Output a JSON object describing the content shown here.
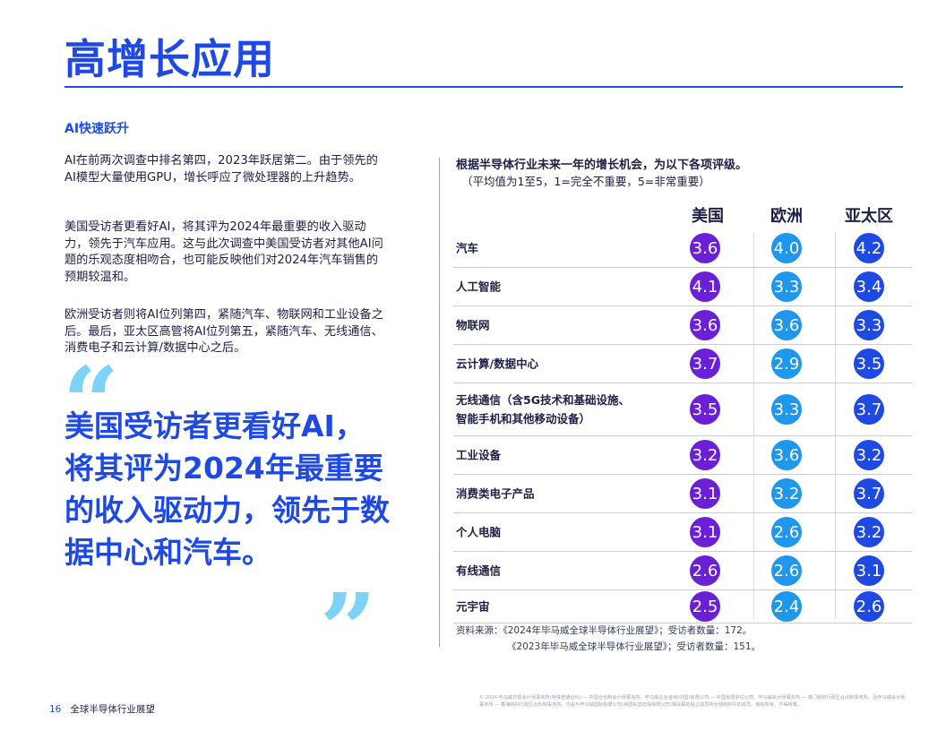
{
  "page": {
    "title": "高增长应用",
    "section_heading": "AI快速跃升",
    "paragraphs": [
      "AI在前两次调查中排名第四，2023年跃居第二。由于领先的AI模型大量使用GPU，增长呼应了微处理器的上升趋势。",
      "美国受访者更看好AI，将其评为2024年最重要的收入驱动力，领先于汽车应用。这与此次调查中美国受访者对其他AI问题的乐观态度相吻合，也可能反映他们对2024年汽车销售的预期较温和。",
      "欧洲受访者则将AI位列第四，紧随汽车、物联网和工业设备之后。最后，亚太区高管将AI位列第五，紧随汽车、无线通信、消费电子和云计算/数据中心之后。"
    ],
    "quote": {
      "open_mark": "“",
      "text": "美国受访者更看好AI，将其评为2024年最重要的收入驱动力，领先于数据中心和汽车。",
      "close_mark": "”"
    }
  },
  "chart_data": {
    "type": "table",
    "title": "根据半导体行业未来一年的增长机会，为以下各项评级。",
    "subtitle": "（平均值为1至5，1=完全不重要，5=非常重要）",
    "columns": [
      "美国",
      "欧洲",
      "亚太区"
    ],
    "column_colors": [
      "#6b1fd6",
      "#1e97ec",
      "#1e49e2"
    ],
    "rows": [
      {
        "label": "汽车",
        "values": [
          "3.6",
          "4.0",
          "4.2"
        ]
      },
      {
        "label": "人工智能",
        "values": [
          "4.1",
          "3.3",
          "3.4"
        ]
      },
      {
        "label": "物联网",
        "values": [
          "3.6",
          "3.6",
          "3.3"
        ]
      },
      {
        "label": "云计算/数据中心",
        "values": [
          "3.7",
          "2.9",
          "3.5"
        ]
      },
      {
        "label": "无线通信（含5G技术和基础设施、智能手机和其他移动设备）",
        "label_lines": [
          "无线通信（含5G技术和基础设施、",
          "智能手机和其他移动设备）"
        ],
        "values": [
          "3.5",
          "3.3",
          "3.7"
        ]
      },
      {
        "label": "工业设备",
        "values": [
          "3.2",
          "3.6",
          "3.2"
        ]
      },
      {
        "label": "消费类电子产品",
        "values": [
          "3.1",
          "3.2",
          "3.7"
        ]
      },
      {
        "label": "个人电脑",
        "values": [
          "3.1",
          "2.6",
          "3.2"
        ]
      },
      {
        "label": "有线通信",
        "values": [
          "2.6",
          "2.6",
          "3.1"
        ]
      },
      {
        "label": "元宇宙",
        "values": [
          "2.5",
          "2.4",
          "2.6"
        ]
      }
    ],
    "sources": [
      "资料来源：《2024年毕马威全球半导体行业展望》；受访者数量：172。",
      "《2023年毕马威全球半导体行业展望》；受访者数量：151。"
    ]
  },
  "footer": {
    "page_number": "16",
    "publication": "全球半导体行业展望",
    "legal": "© 2024 毕马威华振会计师事务所(特殊普通合伙) — 中国合伙制会计师事务所、毕马威企业咨询(中国)有限公司 — 中国有限责任公司、毕马威会计师事务所 — 澳门特别行政区合伙制事务所、及毕马威会计师事务所 — 香港特别行政区合伙制事务所，均是与毕马威国际有限公司(英国私营担保有限公司)相关联的独立成员所全球组织中的成员。版权所有，不得转载。"
  }
}
